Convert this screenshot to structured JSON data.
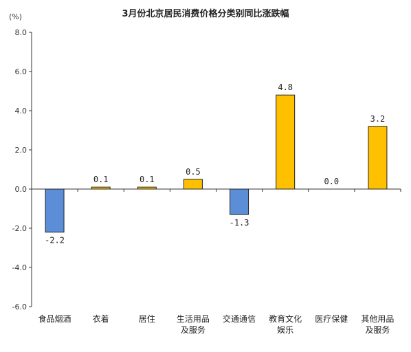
{
  "chart_data": {
    "type": "bar",
    "title": "3月份北京居民消费价格分类别同比涨跌幅",
    "unit": "(%)",
    "ylim": [
      -6.0,
      8.0
    ],
    "yticks": [
      8.0,
      6.0,
      4.0,
      2.0,
      0.0,
      -2.0,
      -4.0,
      -6.0
    ],
    "ytick_labels": [
      "8.0",
      "6.0",
      "4.0",
      "2.0",
      "0.0",
      "-2.0",
      "-4.0",
      "-6.0"
    ],
    "categories": [
      [
        "食品烟酒"
      ],
      [
        "衣着"
      ],
      [
        "居住"
      ],
      [
        "生活用品",
        "及服务"
      ],
      [
        "交通通信"
      ],
      [
        "教育文化",
        "娱乐"
      ],
      [
        "医疗保健"
      ],
      [
        "其他用品",
        "及服务"
      ]
    ],
    "values": [
      -2.2,
      0.1,
      0.1,
      0.5,
      -1.3,
      4.8,
      0.0,
      3.2
    ],
    "value_labels": [
      "-2.2",
      "0.1",
      "0.1",
      "0.5",
      "-1.3",
      "4.8",
      "0.0",
      "3.2"
    ],
    "colors": {
      "positive": "#FFC000",
      "negative": "#5B8ED6",
      "bar_stroke": "#222222",
      "axis": "#333333"
    },
    "grid": false,
    "legend": "none"
  }
}
